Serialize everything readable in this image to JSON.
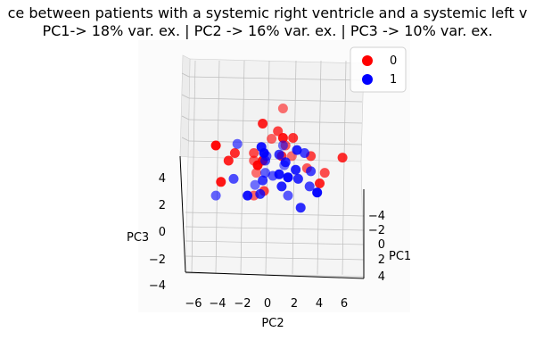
{
  "chart_data": {
    "type": "scatter",
    "title_line1": "ce between patients with a systemic right ventricle and a systemic left v",
    "title_line2": "PC1-> 18% var. ex. | PC2 -> 16% var. ex. | PC3 -> 10% var. ex.",
    "xlabel": "PC2",
    "ylabel": "PC1",
    "zlabel": "PC3",
    "x_ticks": [
      "−6",
      "−4",
      "−2",
      "0",
      "2",
      "4",
      "6"
    ],
    "y_ticks": [
      "−4",
      "−2",
      "0",
      "2",
      "4"
    ],
    "z_ticks": [
      "4",
      "2",
      "0",
      "−2",
      "−4"
    ],
    "xlim": [
      -7,
      7
    ],
    "ylim": [
      -5,
      5
    ],
    "zlim": [
      -5,
      5
    ],
    "grid": true,
    "legend_position": "top-right",
    "series": [
      {
        "name": "0",
        "color": "#ff0000",
        "points": [
          [
            0.8,
            2,
            3.5
          ],
          [
            -0.8,
            2,
            2.5
          ],
          [
            0.4,
            2,
            2.0
          ],
          [
            -0.1,
            2,
            1.5
          ],
          [
            0.8,
            0,
            1.5
          ],
          [
            1.6,
            0,
            1.5
          ],
          [
            1.0,
            0,
            1.0
          ],
          [
            -4.5,
            0,
            1.0
          ],
          [
            -3.0,
            0,
            0.5
          ],
          [
            -1.5,
            0,
            0.5
          ],
          [
            1.5,
            0,
            0.3
          ],
          [
            -3.5,
            0,
            0.0
          ],
          [
            3.0,
            0,
            0.3
          ],
          [
            -1.5,
            0,
            0.0
          ],
          [
            -0.8,
            0,
            0.0
          ],
          [
            0.7,
            0,
            0.3
          ],
          [
            2.7,
            0,
            -0.5
          ],
          [
            -1.2,
            0,
            -0.3
          ],
          [
            5.5,
            0,
            0.2
          ],
          [
            4.1,
            0,
            -0.8
          ],
          [
            -1.3,
            0,
            -0.8
          ],
          [
            3.7,
            0,
            -1.5
          ],
          [
            -0.7,
            0,
            -2.0
          ],
          [
            -1.5,
            0,
            -2.3
          ],
          [
            -4.1,
            0,
            -1.4
          ]
        ]
      },
      {
        "name": "1",
        "color": "#0000ff",
        "points": [
          [
            0.8,
            0,
            1.0
          ],
          [
            1.9,
            0,
            0.7
          ],
          [
            2.5,
            0,
            0.5
          ],
          [
            -2.8,
            0,
            1.1
          ],
          [
            -0.9,
            0,
            0.9
          ],
          [
            0.5,
            0,
            0.4
          ],
          [
            -0.5,
            0,
            0.3
          ],
          [
            -0.7,
            0,
            0.5
          ],
          [
            1.0,
            0,
            -0.1
          ],
          [
            -0.6,
            0,
            0.0
          ],
          [
            0.9,
            0,
            -0.3
          ],
          [
            1.8,
            0,
            -0.6
          ],
          [
            3.0,
            0,
            -0.7
          ],
          [
            -0.6,
            0,
            -0.8
          ],
          [
            0.5,
            0,
            -0.9
          ],
          [
            -0.8,
            0,
            -1.3
          ],
          [
            0.0,
            0,
            -1.0
          ],
          [
            1.2,
            0,
            -1.1
          ],
          [
            2.0,
            0,
            -1.2
          ],
          [
            -3.1,
            0,
            -1.2
          ],
          [
            -1.4,
            0,
            -1.6
          ],
          [
            0.7,
            0,
            -1.7
          ],
          [
            2.9,
            0,
            -1.7
          ],
          [
            -4.5,
            0,
            -2.3
          ],
          [
            -2.0,
            0,
            -2.3
          ],
          [
            -1.0,
            0,
            -2.2
          ],
          [
            1.2,
            0,
            -2.3
          ],
          [
            3.5,
            0,
            -2.1
          ],
          [
            2.2,
            0,
            -3.1
          ]
        ]
      }
    ]
  }
}
